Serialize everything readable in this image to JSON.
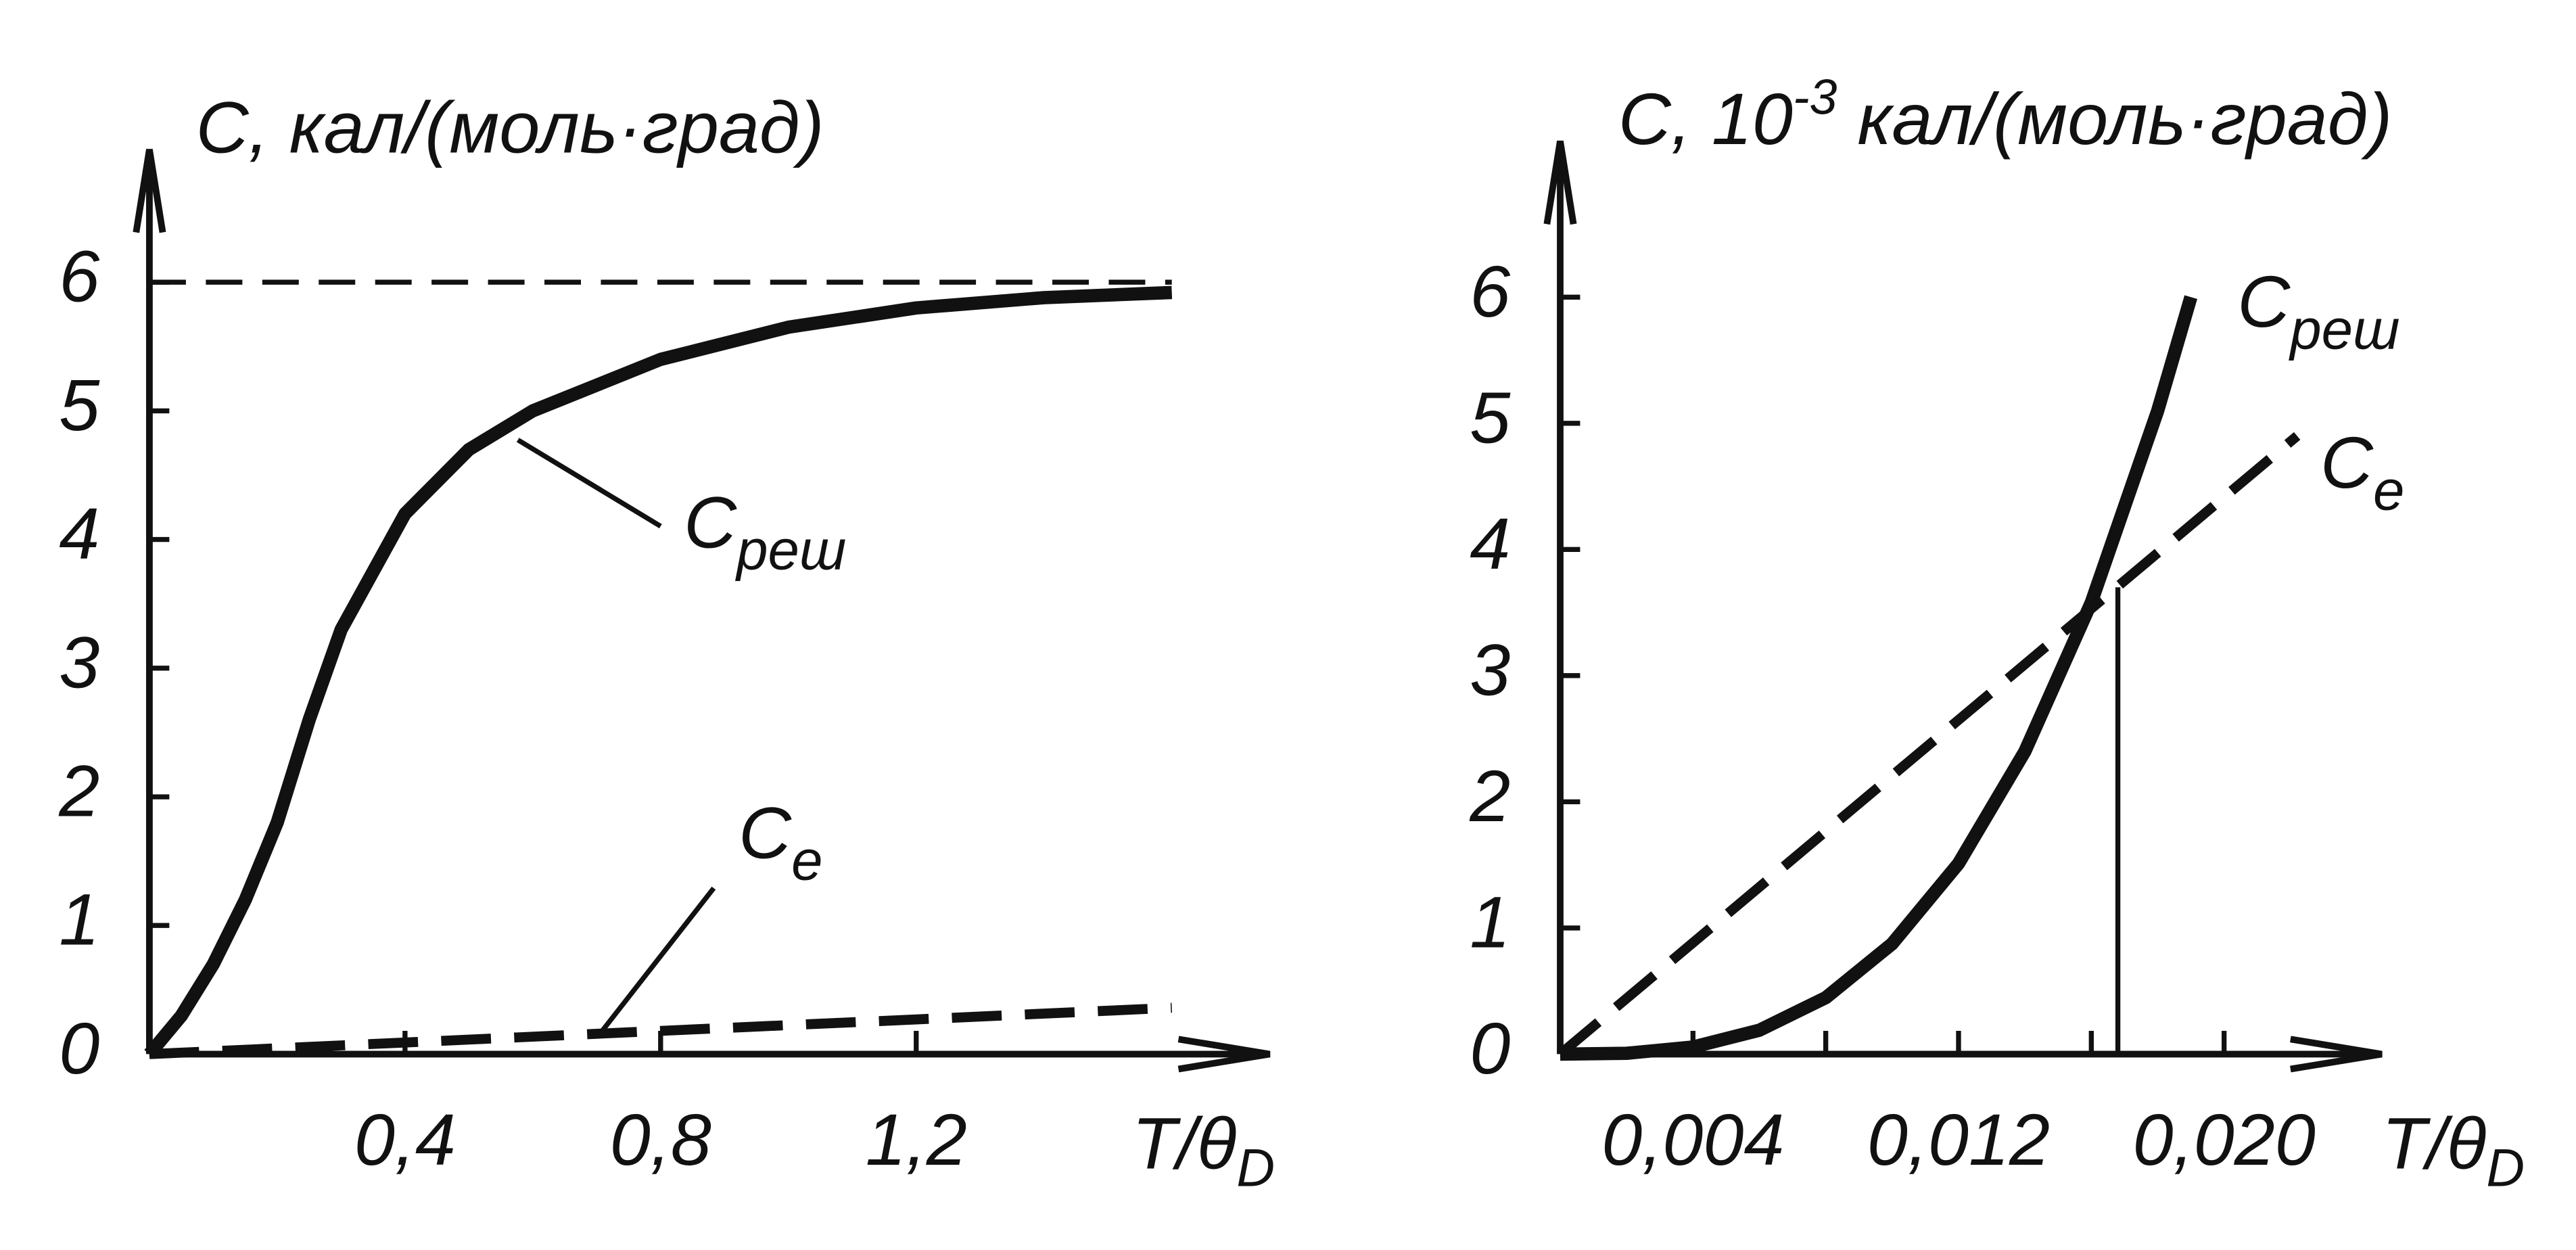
{
  "chart_data": [
    {
      "type": "line",
      "y_label": [
        "C, кал/(моль·град)"
      ],
      "x_label": "T/θ",
      "x_label_sub": "D",
      "xlim": [
        0,
        1.72
      ],
      "ylim": [
        0,
        7.1
      ],
      "xticks": [
        {
          "value": 0.4,
          "label": "0,4"
        },
        {
          "value": 0.8,
          "label": "0,8"
        },
        {
          "value": 1.2,
          "label": "1,2"
        }
      ],
      "yticks": [
        0,
        1,
        2,
        3,
        4,
        5,
        6
      ],
      "hline": 6,
      "series": [
        {
          "name": "C",
          "name_sub": "реш",
          "color": "#111111",
          "dashed": false,
          "x": [
            0,
            0.05,
            0.1,
            0.15,
            0.2,
            0.25,
            0.3,
            0.4,
            0.5,
            0.6,
            0.8,
            1.0,
            1.2,
            1.4,
            1.6
          ],
          "values": [
            0,
            0.3,
            0.7,
            1.2,
            1.8,
            2.6,
            3.3,
            4.2,
            4.7,
            5.0,
            5.4,
            5.65,
            5.8,
            5.88,
            5.92
          ]
        },
        {
          "name": "C",
          "name_sub": "e",
          "color": "#111111",
          "dashed": true,
          "x": [
            0,
            0.4,
            0.8,
            1.2,
            1.6
          ],
          "values": [
            0,
            0.09,
            0.18,
            0.27,
            0.36
          ]
        }
      ]
    },
    {
      "type": "line",
      "y_label": [
        "C, 10",
        "-3",
        " кал/(моль·град)"
      ],
      "x_label": "T/θ",
      "x_label_sub": "D",
      "xlim": [
        0,
        0.0245
      ],
      "ylim": [
        0,
        7.2
      ],
      "xticks": [
        {
          "value": 0.004,
          "label": "0,004"
        },
        {
          "value": 0.012,
          "label": "0,012"
        },
        {
          "value": 0.02,
          "label": "0,020"
        }
      ],
      "xminorticks": [
        0.008,
        0.016
      ],
      "yticks": [
        0,
        1,
        2,
        3,
        4,
        5,
        6
      ],
      "vline": {
        "x": 0.0168,
        "y": 3.7
      },
      "series": [
        {
          "name": "C",
          "name_sub": "реш",
          "color": "#111111",
          "dashed": false,
          "x": [
            0,
            0.002,
            0.004,
            0.006,
            0.008,
            0.01,
            0.012,
            0.014,
            0.016,
            0.018,
            0.019
          ],
          "values": [
            0,
            0.007,
            0.056,
            0.189,
            0.448,
            0.875,
            1.51,
            2.4,
            3.58,
            5.1,
            6.0
          ]
        },
        {
          "name": "C",
          "name_sub": "e",
          "color": "#111111",
          "dashed": true,
          "x": [
            0,
            0.0222
          ],
          "values": [
            0,
            4.9
          ]
        }
      ]
    }
  ]
}
